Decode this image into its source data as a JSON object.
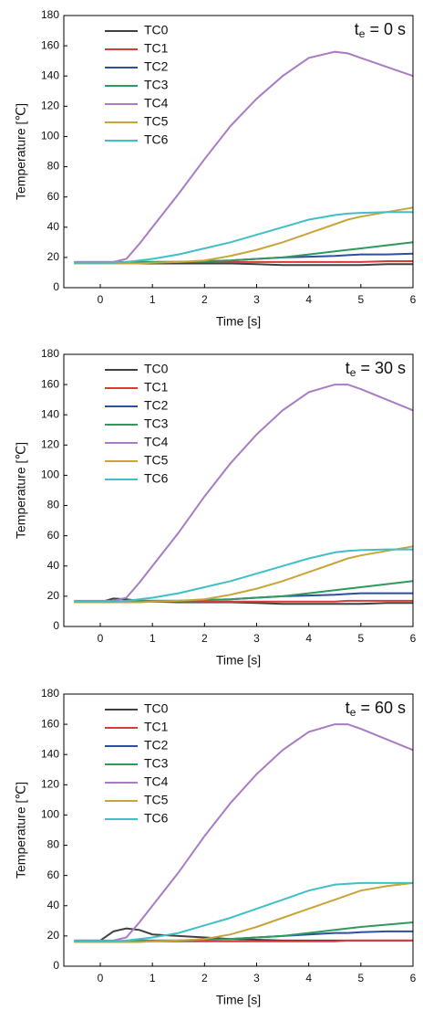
{
  "chart_data": [
    {
      "type": "line",
      "annotation": {
        "base": "t",
        "sub": "e",
        "rest": " = 0 s"
      },
      "x_label": "Time [s]",
      "y_label": "Temperature [℃]",
      "xlim": [
        -0.7,
        6
      ],
      "xticks": [
        0,
        1,
        2,
        3,
        4,
        5,
        6
      ],
      "ylim": [
        0,
        180
      ],
      "yticks": [
        0,
        20,
        40,
        60,
        80,
        100,
        120,
        140,
        160,
        180
      ],
      "legend": "upper left",
      "x": [
        -0.5,
        0,
        0.25,
        0.5,
        0.75,
        1,
        1.5,
        2,
        2.5,
        3,
        3.5,
        4,
        4.5,
        4.75,
        5,
        5.5,
        6
      ],
      "series": [
        {
          "name": "TC0",
          "color": "#404040",
          "values": [
            16,
            16,
            16,
            16,
            16,
            16,
            16,
            16,
            16,
            15.5,
            15,
            15,
            15,
            15,
            15,
            15.5,
            15.5
          ]
        },
        {
          "name": "TC1",
          "color": "#d93a3a",
          "values": [
            17,
            17,
            17,
            17,
            17,
            17,
            17,
            17,
            17,
            17,
            17,
            17,
            17,
            17,
            17,
            17.5,
            17.5
          ]
        },
        {
          "name": "TC2",
          "color": "#2c4fa0",
          "values": [
            16.5,
            16.5,
            16.5,
            16.5,
            17,
            17,
            17,
            17.5,
            18,
            19,
            20,
            20.5,
            21,
            21.5,
            22,
            22,
            22.5
          ]
        },
        {
          "name": "TC3",
          "color": "#2e9a5e",
          "values": [
            16.5,
            16.5,
            16.5,
            16.5,
            17,
            17,
            17,
            17.5,
            18,
            19,
            20,
            22,
            24,
            25,
            26,
            28,
            30
          ]
        },
        {
          "name": "TC4",
          "color": "#a77cc4",
          "values": [
            17,
            17,
            17,
            19,
            29,
            40,
            62,
            85,
            107,
            125,
            140,
            152,
            156,
            155,
            152,
            146,
            140
          ]
        },
        {
          "name": "TC5",
          "color": "#c9a43a",
          "values": [
            16,
            16,
            16,
            16,
            16,
            16.5,
            17,
            18,
            21,
            25,
            30,
            36,
            42,
            45,
            47,
            50,
            53
          ]
        },
        {
          "name": "TC6",
          "color": "#40bfc7",
          "values": [
            16.5,
            16.5,
            16.5,
            17,
            18,
            19,
            22,
            26,
            30,
            35,
            40,
            45,
            48,
            49,
            49.5,
            50,
            50
          ]
        }
      ]
    },
    {
      "type": "line",
      "annotation": {
        "base": "t",
        "sub": "e",
        "rest": " = 30 s"
      },
      "x_label": "Time [s]",
      "y_label": "Temperature [℃]",
      "xlim": [
        -0.7,
        6
      ],
      "xticks": [
        0,
        1,
        2,
        3,
        4,
        5,
        6
      ],
      "ylim": [
        0,
        180
      ],
      "yticks": [
        0,
        20,
        40,
        60,
        80,
        100,
        120,
        140,
        160,
        180
      ],
      "legend": "upper left",
      "x": [
        -0.5,
        0,
        0.25,
        0.5,
        0.75,
        1,
        1.5,
        2,
        2.5,
        3,
        3.5,
        4,
        4.5,
        4.75,
        5,
        5.5,
        6
      ],
      "series": [
        {
          "name": "TC0",
          "color": "#404040",
          "values": [
            16,
            16,
            18.5,
            18,
            17,
            16.5,
            16,
            16,
            16,
            15.5,
            15,
            15,
            15,
            15,
            15,
            15.5,
            15.5
          ]
        },
        {
          "name": "TC1",
          "color": "#d93a3a",
          "values": [
            16.5,
            16.5,
            16.5,
            16.5,
            16.5,
            16.5,
            16.5,
            16.5,
            16.5,
            16.5,
            16.5,
            16.5,
            16.5,
            17,
            17,
            17,
            17
          ]
        },
        {
          "name": "TC2",
          "color": "#2c4fa0",
          "values": [
            16.5,
            16.5,
            16.5,
            16.5,
            17,
            17,
            17,
            17.5,
            18,
            19,
            20,
            20.5,
            21,
            21.5,
            22,
            22,
            22
          ]
        },
        {
          "name": "TC3",
          "color": "#2e9a5e",
          "values": [
            16.5,
            16.5,
            16.5,
            16.5,
            17,
            17,
            17,
            17.5,
            18,
            19,
            20,
            22,
            24,
            25,
            26,
            28,
            30
          ]
        },
        {
          "name": "TC4",
          "color": "#a77cc4",
          "values": [
            17,
            17,
            17,
            19,
            29,
            40,
            62,
            86,
            108,
            127,
            143,
            155,
            160,
            160,
            157,
            150,
            143
          ]
        },
        {
          "name": "TC5",
          "color": "#c9a43a",
          "values": [
            16,
            16,
            16,
            16,
            16,
            16.5,
            17,
            18,
            21,
            25,
            30,
            36,
            42,
            45,
            47,
            50,
            53
          ]
        },
        {
          "name": "TC6",
          "color": "#40bfc7",
          "values": [
            16.5,
            16.5,
            16.5,
            17,
            18,
            19,
            22,
            26,
            30,
            35,
            40,
            45,
            49,
            50,
            50.5,
            51,
            51
          ]
        }
      ]
    },
    {
      "type": "line",
      "annotation": {
        "base": "t",
        "sub": "e",
        "rest": " = 60 s"
      },
      "x_label": "Time [s]",
      "y_label": "Temperature [℃]",
      "xlim": [
        -0.7,
        6
      ],
      "xticks": [
        0,
        1,
        2,
        3,
        4,
        5,
        6
      ],
      "ylim": [
        0,
        180
      ],
      "yticks": [
        0,
        20,
        40,
        60,
        80,
        100,
        120,
        140,
        160,
        180
      ],
      "legend": "upper left",
      "x": [
        -0.5,
        0,
        0.25,
        0.5,
        0.75,
        1,
        1.5,
        2,
        2.5,
        3,
        3.5,
        4,
        4.5,
        4.75,
        5,
        5.5,
        6
      ],
      "series": [
        {
          "name": "TC0",
          "color": "#404040",
          "values": [
            17,
            17,
            23,
            25,
            24,
            21,
            20,
            19,
            18,
            17.5,
            17,
            17,
            17,
            17,
            17,
            17,
            17
          ]
        },
        {
          "name": "TC1",
          "color": "#d93a3a",
          "values": [
            16.5,
            16.5,
            16.5,
            16.5,
            16.5,
            16.5,
            16.5,
            16.5,
            16.5,
            16.5,
            16.5,
            16.5,
            16.5,
            17,
            17,
            17,
            17
          ]
        },
        {
          "name": "TC2",
          "color": "#2c4fa0",
          "values": [
            16.5,
            16.5,
            16.5,
            16.5,
            17,
            17,
            17,
            17.5,
            18,
            19,
            20,
            21,
            22,
            22,
            22.5,
            23,
            23
          ]
        },
        {
          "name": "TC3",
          "color": "#2e9a5e",
          "values": [
            16.5,
            16.5,
            16.5,
            16.5,
            17,
            17,
            17,
            17.5,
            18,
            19,
            20,
            22,
            24,
            25,
            26,
            27.5,
            29
          ]
        },
        {
          "name": "TC4",
          "color": "#a77cc4",
          "values": [
            17,
            17,
            17,
            19,
            29,
            40,
            62,
            86,
            108,
            127,
            143,
            155,
            160,
            160,
            157,
            150,
            143
          ]
        },
        {
          "name": "TC5",
          "color": "#c9a43a",
          "values": [
            16,
            16,
            16,
            16,
            16,
            16.5,
            17,
            18,
            21,
            26,
            32,
            38,
            44,
            47,
            50,
            53,
            55
          ]
        },
        {
          "name": "TC6",
          "color": "#40bfc7",
          "values": [
            16.5,
            16.5,
            16.5,
            17,
            18,
            19,
            22,
            27,
            32,
            38,
            44,
            50,
            54,
            54.5,
            55,
            55,
            55
          ]
        }
      ]
    }
  ]
}
